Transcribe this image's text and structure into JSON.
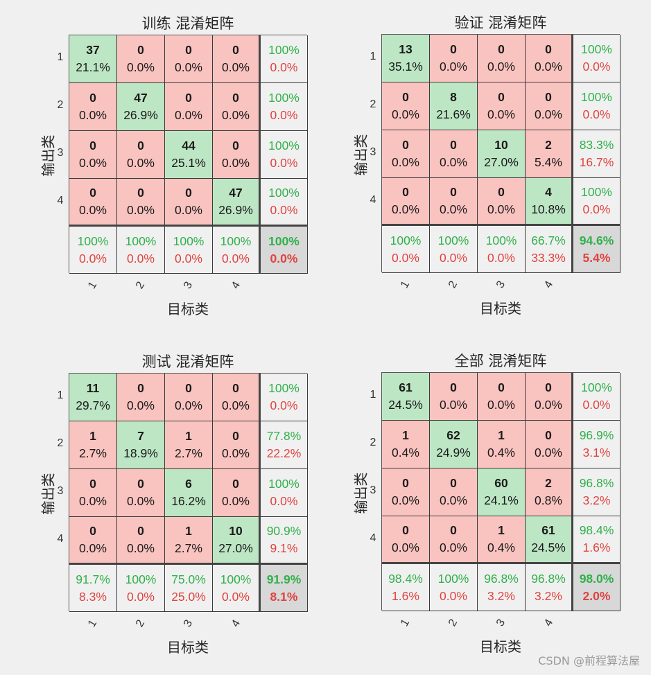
{
  "labels": {
    "xlabel": "目标类",
    "ylabel": "输出类",
    "ticks": [
      "1",
      "2",
      "3",
      "4"
    ]
  },
  "watermark": "CSDN @前程算法屋",
  "colors": {
    "diag": "#bde6c5",
    "off": "#f9c3c0",
    "summary": "#f0f0f0",
    "corner": "#d8d8d8",
    "green_text": "#2fb14a",
    "red_text": "#e0433f"
  },
  "chart_data": [
    {
      "type": "heatmap",
      "title": "训练 混淆矩阵",
      "xlabel": "目标类",
      "ylabel": "输出类",
      "classes": [
        "1",
        "2",
        "3",
        "4"
      ],
      "rows": [
        [
          {
            "c": "37",
            "p": "21.1%"
          },
          {
            "c": "0",
            "p": "0.0%"
          },
          {
            "c": "0",
            "p": "0.0%"
          },
          {
            "c": "0",
            "p": "0.0%"
          },
          {
            "g": "100%",
            "r": "0.0%"
          }
        ],
        [
          {
            "c": "0",
            "p": "0.0%"
          },
          {
            "c": "47",
            "p": "26.9%"
          },
          {
            "c": "0",
            "p": "0.0%"
          },
          {
            "c": "0",
            "p": "0.0%"
          },
          {
            "g": "100%",
            "r": "0.0%"
          }
        ],
        [
          {
            "c": "0",
            "p": "0.0%"
          },
          {
            "c": "0",
            "p": "0.0%"
          },
          {
            "c": "44",
            "p": "25.1%"
          },
          {
            "c": "0",
            "p": "0.0%"
          },
          {
            "g": "100%",
            "r": "0.0%"
          }
        ],
        [
          {
            "c": "0",
            "p": "0.0%"
          },
          {
            "c": "0",
            "p": "0.0%"
          },
          {
            "c": "0",
            "p": "0.0%"
          },
          {
            "c": "47",
            "p": "26.9%"
          },
          {
            "g": "100%",
            "r": "0.0%"
          }
        ],
        [
          {
            "g": "100%",
            "r": "0.0%"
          },
          {
            "g": "100%",
            "r": "0.0%"
          },
          {
            "g": "100%",
            "r": "0.0%"
          },
          {
            "g": "100%",
            "r": "0.0%"
          },
          {
            "g": "100%",
            "r": "0.0%"
          }
        ]
      ]
    },
    {
      "type": "heatmap",
      "title": "验证 混淆矩阵",
      "xlabel": "目标类",
      "ylabel": "输出类",
      "classes": [
        "1",
        "2",
        "3",
        "4"
      ],
      "rows": [
        [
          {
            "c": "13",
            "p": "35.1%"
          },
          {
            "c": "0",
            "p": "0.0%"
          },
          {
            "c": "0",
            "p": "0.0%"
          },
          {
            "c": "0",
            "p": "0.0%"
          },
          {
            "g": "100%",
            "r": "0.0%"
          }
        ],
        [
          {
            "c": "0",
            "p": "0.0%"
          },
          {
            "c": "8",
            "p": "21.6%"
          },
          {
            "c": "0",
            "p": "0.0%"
          },
          {
            "c": "0",
            "p": "0.0%"
          },
          {
            "g": "100%",
            "r": "0.0%"
          }
        ],
        [
          {
            "c": "0",
            "p": "0.0%"
          },
          {
            "c": "0",
            "p": "0.0%"
          },
          {
            "c": "10",
            "p": "27.0%"
          },
          {
            "c": "2",
            "p": "5.4%"
          },
          {
            "g": "83.3%",
            "r": "16.7%"
          }
        ],
        [
          {
            "c": "0",
            "p": "0.0%"
          },
          {
            "c": "0",
            "p": "0.0%"
          },
          {
            "c": "0",
            "p": "0.0%"
          },
          {
            "c": "4",
            "p": "10.8%"
          },
          {
            "g": "100%",
            "r": "0.0%"
          }
        ],
        [
          {
            "g": "100%",
            "r": "0.0%"
          },
          {
            "g": "100%",
            "r": "0.0%"
          },
          {
            "g": "100%",
            "r": "0.0%"
          },
          {
            "g": "66.7%",
            "r": "33.3%"
          },
          {
            "g": "94.6%",
            "r": "5.4%"
          }
        ]
      ]
    },
    {
      "type": "heatmap",
      "title": "测试 混淆矩阵",
      "xlabel": "目标类",
      "ylabel": "输出类",
      "classes": [
        "1",
        "2",
        "3",
        "4"
      ],
      "rows": [
        [
          {
            "c": "11",
            "p": "29.7%"
          },
          {
            "c": "0",
            "p": "0.0%"
          },
          {
            "c": "0",
            "p": "0.0%"
          },
          {
            "c": "0",
            "p": "0.0%"
          },
          {
            "g": "100%",
            "r": "0.0%"
          }
        ],
        [
          {
            "c": "1",
            "p": "2.7%"
          },
          {
            "c": "7",
            "p": "18.9%"
          },
          {
            "c": "1",
            "p": "2.7%"
          },
          {
            "c": "0",
            "p": "0.0%"
          },
          {
            "g": "77.8%",
            "r": "22.2%"
          }
        ],
        [
          {
            "c": "0",
            "p": "0.0%"
          },
          {
            "c": "0",
            "p": "0.0%"
          },
          {
            "c": "6",
            "p": "16.2%"
          },
          {
            "c": "0",
            "p": "0.0%"
          },
          {
            "g": "100%",
            "r": "0.0%"
          }
        ],
        [
          {
            "c": "0",
            "p": "0.0%"
          },
          {
            "c": "0",
            "p": "0.0%"
          },
          {
            "c": "1",
            "p": "2.7%"
          },
          {
            "c": "10",
            "p": "27.0%"
          },
          {
            "g": "90.9%",
            "r": "9.1%"
          }
        ],
        [
          {
            "g": "91.7%",
            "r": "8.3%"
          },
          {
            "g": "100%",
            "r": "0.0%"
          },
          {
            "g": "75.0%",
            "r": "25.0%"
          },
          {
            "g": "100%",
            "r": "0.0%"
          },
          {
            "g": "91.9%",
            "r": "8.1%"
          }
        ]
      ]
    },
    {
      "type": "heatmap",
      "title": "全部 混淆矩阵",
      "xlabel": "目标类",
      "ylabel": "输出类",
      "classes": [
        "1",
        "2",
        "3",
        "4"
      ],
      "rows": [
        [
          {
            "c": "61",
            "p": "24.5%"
          },
          {
            "c": "0",
            "p": "0.0%"
          },
          {
            "c": "0",
            "p": "0.0%"
          },
          {
            "c": "0",
            "p": "0.0%"
          },
          {
            "g": "100%",
            "r": "0.0%"
          }
        ],
        [
          {
            "c": "1",
            "p": "0.4%"
          },
          {
            "c": "62",
            "p": "24.9%"
          },
          {
            "c": "1",
            "p": "0.4%"
          },
          {
            "c": "0",
            "p": "0.0%"
          },
          {
            "g": "96.9%",
            "r": "3.1%"
          }
        ],
        [
          {
            "c": "0",
            "p": "0.0%"
          },
          {
            "c": "0",
            "p": "0.0%"
          },
          {
            "c": "60",
            "p": "24.1%"
          },
          {
            "c": "2",
            "p": "0.8%"
          },
          {
            "g": "96.8%",
            "r": "3.2%"
          }
        ],
        [
          {
            "c": "0",
            "p": "0.0%"
          },
          {
            "c": "0",
            "p": "0.0%"
          },
          {
            "c": "1",
            "p": "0.4%"
          },
          {
            "c": "61",
            "p": "24.5%"
          },
          {
            "g": "98.4%",
            "r": "1.6%"
          }
        ],
        [
          {
            "g": "98.4%",
            "r": "1.6%"
          },
          {
            "g": "100%",
            "r": "0.0%"
          },
          {
            "g": "96.8%",
            "r": "3.2%"
          },
          {
            "g": "96.8%",
            "r": "3.2%"
          },
          {
            "g": "98.0%",
            "r": "2.0%"
          }
        ]
      ]
    }
  ]
}
